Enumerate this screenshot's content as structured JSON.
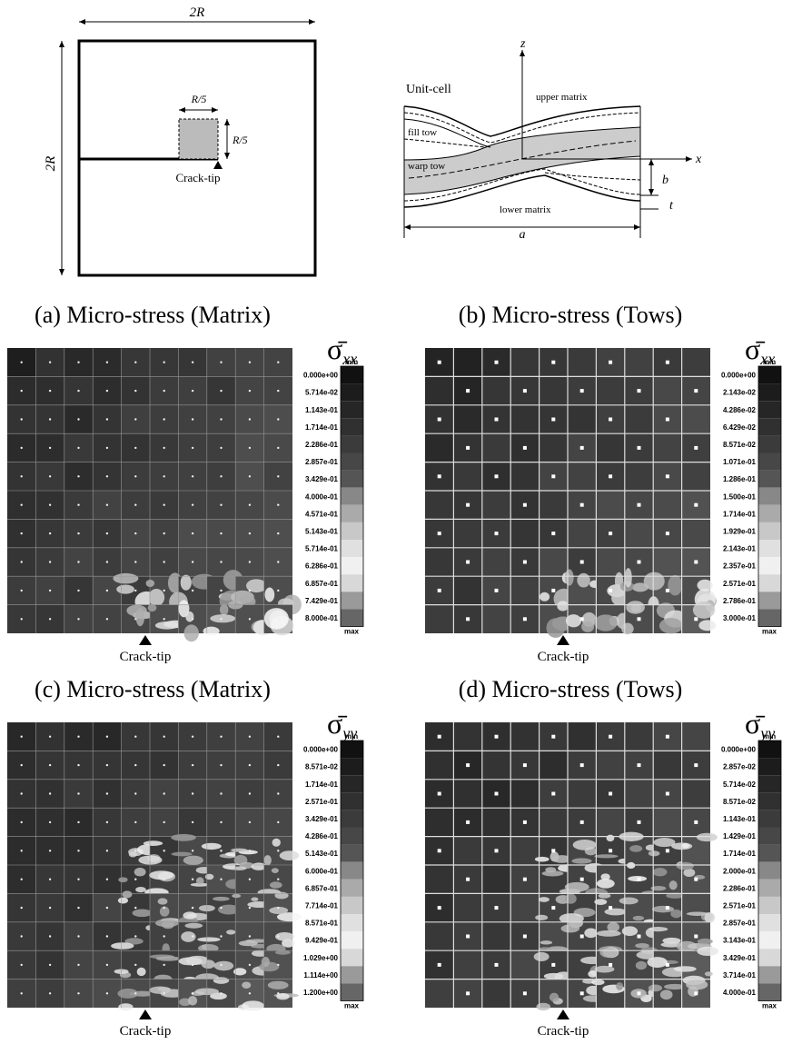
{
  "schematic": {
    "width_label": "2R",
    "height_label": "2R",
    "box_width_label": "R/5",
    "box_height_label": "R/5",
    "crack_tip": "Crack-tip"
  },
  "unit_cell": {
    "title": "Unit-cell",
    "z_axis": "z",
    "x_axis": "x",
    "upper_matrix": "upper matrix",
    "fill_tow": "fill tow",
    "warp_tow": "warp tow",
    "lower_matrix": "lower matrix",
    "a": "a",
    "b": "b",
    "t": "t"
  },
  "panels": [
    {
      "title": "(a) Micro-stress (Matrix)",
      "symbol": "σ̄",
      "subscript": "xx",
      "min": "min",
      "max": "max",
      "crack_tip": "Crack-tip",
      "levels": [
        "0.000e+00",
        "5.714e-02",
        "1.143e-01",
        "1.714e-01",
        "2.286e-01",
        "2.857e-01",
        "3.429e-01",
        "4.000e-01",
        "4.571e-01",
        "5.143e-01",
        "5.714e-01",
        "6.286e-01",
        "6.857e-01",
        "7.429e-01",
        "8.000e-01"
      ]
    },
    {
      "title": "(b) Micro-stress (Tows)",
      "symbol": "σ̄",
      "subscript": "xx",
      "min": "min",
      "max": "max",
      "crack_tip": "Crack-tip",
      "levels": [
        "0.000e+00",
        "2.143e-02",
        "4.286e-02",
        "6.429e-02",
        "8.571e-02",
        "1.071e-01",
        "1.286e-01",
        "1.500e-01",
        "1.714e-01",
        "1.929e-01",
        "2.143e-01",
        "2.357e-01",
        "2.571e-01",
        "2.786e-01",
        "3.000e-01"
      ]
    },
    {
      "title": "(c) Micro-stress (Matrix)",
      "symbol": "σ̄",
      "subscript": "yy",
      "min": "min",
      "max": "max",
      "crack_tip": "Crack-tip",
      "levels": [
        "0.000e+00",
        "8.571e-02",
        "1.714e-01",
        "2.571e-01",
        "3.429e-01",
        "4.286e-01",
        "5.143e-01",
        "6.000e-01",
        "6.857e-01",
        "7.714e-01",
        "8.571e-01",
        "9.429e-01",
        "1.029e+00",
        "1.114e+00",
        "1.200e+00"
      ]
    },
    {
      "title": "(d) Micro-stress (Tows)",
      "symbol": "σ̄",
      "subscript": "yy",
      "min": "min",
      "max": "max",
      "crack_tip": "Crack-tip",
      "levels": [
        "0.000e+00",
        "2.857e-02",
        "5.714e-02",
        "8.571e-02",
        "1.143e-01",
        "1.429e-01",
        "1.714e-01",
        "2.000e-01",
        "2.286e-01",
        "2.571e-01",
        "2.857e-01",
        "3.143e-01",
        "3.429e-01",
        "3.714e-01",
        "4.000e-01"
      ]
    }
  ]
}
